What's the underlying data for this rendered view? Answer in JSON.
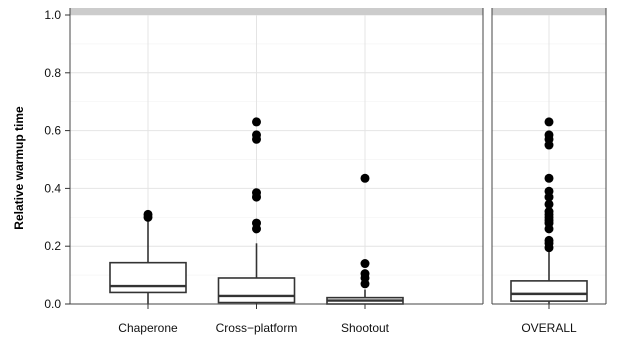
{
  "chart_data": {
    "type": "boxplot",
    "ylabel": "Relative warmup time",
    "xlabel": "",
    "ylim": [
      0,
      1.0
    ],
    "yticks": [
      "0.0",
      "0.2",
      "0.4",
      "0.6",
      "0.8",
      "1.0"
    ],
    "grid": true,
    "panels": [
      {
        "name": "benchmarks",
        "categories": [
          "Chaperone",
          "Cross−platform",
          "Shootout"
        ],
        "boxes": [
          {
            "category": "Chaperone",
            "q1": 0.04,
            "median": 0.062,
            "q3": 0.143,
            "whisker_low": 0.0,
            "whisker_high": 0.29,
            "outliers": [
              0.3,
              0.31
            ]
          },
          {
            "category": "Cross−platform",
            "q1": 0.005,
            "median": 0.028,
            "q3": 0.09,
            "whisker_low": 0.0,
            "whisker_high": 0.21,
            "outliers": [
              0.26,
              0.28,
              0.37,
              0.385,
              0.57,
              0.585,
              0.63
            ]
          },
          {
            "category": "Shootout",
            "q1": 0.0,
            "median": 0.012,
            "q3": 0.022,
            "whisker_low": 0.0,
            "whisker_high": 0.05,
            "outliers": [
              0.07,
              0.09,
              0.105,
              0.14,
              0.435
            ]
          }
        ]
      },
      {
        "name": "overall",
        "categories": [
          "OVERALL"
        ],
        "boxes": [
          {
            "category": "OVERALL",
            "q1": 0.01,
            "median": 0.035,
            "q3": 0.08,
            "whisker_low": 0.0,
            "whisker_high": 0.185,
            "outliers": [
              0.195,
              0.21,
              0.22,
              0.26,
              0.28,
              0.29,
              0.3,
              0.31,
              0.32,
              0.345,
              0.37,
              0.39,
              0.435,
              0.55,
              0.57,
              0.585,
              0.63
            ]
          }
        ]
      }
    ]
  }
}
